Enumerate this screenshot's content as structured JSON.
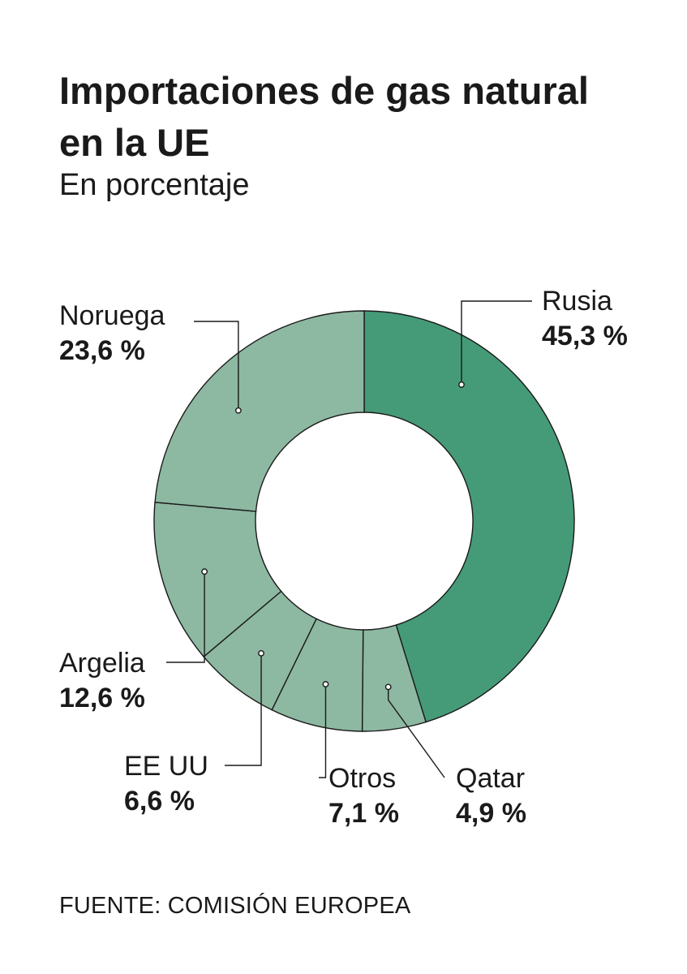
{
  "title": "Importaciones de gas natural en la UE",
  "subtitle": "En porcentaje",
  "source": "FUENTE: COMISIÓN EUROPEA",
  "colors": {
    "highlight": "#459b78",
    "other": "#8db8a1",
    "stroke": "#1a1a1a"
  },
  "chart_data": {
    "type": "pie",
    "donut": true,
    "title": "Importaciones de gas natural en la UE",
    "subtitle": "En porcentaje",
    "unit": "%",
    "slices": [
      {
        "name": "Rusia",
        "value": 45.3,
        "label": "45,3 %"
      },
      {
        "name": "Qatar",
        "value": 4.9,
        "label": "4,9 %"
      },
      {
        "name": "Otros",
        "value": 7.1,
        "label": "7,1 %"
      },
      {
        "name": "EE UU",
        "value": 6.6,
        "label": "6,6 %"
      },
      {
        "name": "Argelia",
        "value": 12.6,
        "label": "12,6 %"
      },
      {
        "name": "Noruega",
        "value": 23.6,
        "label": "23,6 %"
      }
    ]
  }
}
